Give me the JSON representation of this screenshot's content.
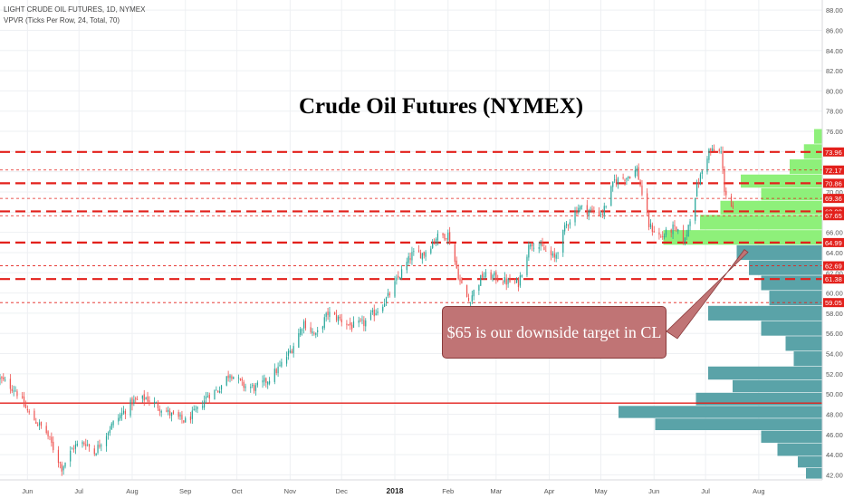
{
  "header": {
    "symbol_line": "LIGHT CRUDE OIL FUTURES, 1D, NYMEX",
    "indicator_line": "VPVR (Ticks Per Row, 24, Total, 70)"
  },
  "annotation": {
    "title": "Crude Oil Futures (NYMEX)",
    "callout": "$65 is our downside target in CL"
  },
  "chart_data": {
    "type": "candlestick",
    "interval": "1D",
    "y_axis": {
      "ticks": [
        "42.00",
        "44.00",
        "46.00",
        "48.00",
        "50.00",
        "52.00",
        "54.00",
        "56.00",
        "58.00",
        "60.00",
        "62.00",
        "64.00",
        "66.00",
        "68.00",
        "70.00",
        "72.00",
        "74.00",
        "76.00",
        "78.00",
        "80.00",
        "82.00",
        "84.00",
        "86.00",
        "88.00"
      ],
      "range": [
        41.5,
        89
      ]
    },
    "x_axis": {
      "labels": [
        {
          "text": "Jun",
          "date": "2017-06-01"
        },
        {
          "text": "Jul",
          "date": "2017-07-01"
        },
        {
          "text": "Aug",
          "date": "2017-08-01"
        },
        {
          "text": "Sep",
          "date": "2017-09-01"
        },
        {
          "text": "Oct",
          "date": "2017-10-01"
        },
        {
          "text": "Nov",
          "date": "2017-11-01"
        },
        {
          "text": "Dec",
          "date": "2017-12-01"
        },
        {
          "text": "2018",
          "date": "2018-01-01",
          "bold": true
        },
        {
          "text": "Feb",
          "date": "2018-02-01"
        },
        {
          "text": "Mar",
          "date": "2018-03-01"
        },
        {
          "text": "Apr",
          "date": "2018-04-01"
        },
        {
          "text": "May",
          "date": "2018-05-01"
        },
        {
          "text": "Jun",
          "date": "2018-06-01"
        },
        {
          "text": "Jul",
          "date": "2018-07-01"
        },
        {
          "text": "Aug",
          "date": "2018-08-01"
        }
      ],
      "range": [
        "2017-05-16",
        "2018-09-07"
      ]
    },
    "price_path": [
      {
        "date": "2017-05-16",
        "close": 51.5
      },
      {
        "date": "2017-05-25",
        "close": 50.4
      },
      {
        "date": "2017-06-02",
        "close": 48.0
      },
      {
        "date": "2017-06-12",
        "close": 46.2
      },
      {
        "date": "2017-06-21",
        "close": 42.7
      },
      {
        "date": "2017-06-28",
        "close": 44.8
      },
      {
        "date": "2017-07-05",
        "close": 45.2
      },
      {
        "date": "2017-07-10",
        "close": 44.2
      },
      {
        "date": "2017-07-20",
        "close": 46.9
      },
      {
        "date": "2017-08-01",
        "close": 49.2
      },
      {
        "date": "2017-08-09",
        "close": 49.6
      },
      {
        "date": "2017-08-18",
        "close": 48.6
      },
      {
        "date": "2017-08-25",
        "close": 47.8
      },
      {
        "date": "2017-09-01",
        "close": 47.3
      },
      {
        "date": "2017-09-08",
        "close": 48.4
      },
      {
        "date": "2017-09-14",
        "close": 49.9
      },
      {
        "date": "2017-09-20",
        "close": 50.4
      },
      {
        "date": "2017-09-27",
        "close": 52.1
      },
      {
        "date": "2017-10-05",
        "close": 50.8
      },
      {
        "date": "2017-10-12",
        "close": 50.6
      },
      {
        "date": "2017-10-19",
        "close": 51.4
      },
      {
        "date": "2017-10-26",
        "close": 52.7
      },
      {
        "date": "2017-11-02",
        "close": 54.5
      },
      {
        "date": "2017-11-09",
        "close": 57.1
      },
      {
        "date": "2017-11-16",
        "close": 55.7
      },
      {
        "date": "2017-11-23",
        "close": 58.0
      },
      {
        "date": "2017-11-30",
        "close": 57.4
      },
      {
        "date": "2017-12-07",
        "close": 56.7
      },
      {
        "date": "2017-12-14",
        "close": 57.0
      },
      {
        "date": "2017-12-21",
        "close": 58.2
      },
      {
        "date": "2017-12-28",
        "close": 59.6
      },
      {
        "date": "2018-01-04",
        "close": 61.8
      },
      {
        "date": "2018-01-11",
        "close": 63.8
      },
      {
        "date": "2018-01-18",
        "close": 63.9
      },
      {
        "date": "2018-01-25",
        "close": 65.5
      },
      {
        "date": "2018-02-01",
        "close": 65.8
      },
      {
        "date": "2018-02-08",
        "close": 61.1
      },
      {
        "date": "2018-02-13",
        "close": 59.2
      },
      {
        "date": "2018-02-21",
        "close": 61.7
      },
      {
        "date": "2018-02-28",
        "close": 61.6
      },
      {
        "date": "2018-03-07",
        "close": 61.1
      },
      {
        "date": "2018-03-14",
        "close": 61.0
      },
      {
        "date": "2018-03-21",
        "close": 65.1
      },
      {
        "date": "2018-03-28",
        "close": 64.4
      },
      {
        "date": "2018-04-04",
        "close": 63.4
      },
      {
        "date": "2018-04-11",
        "close": 66.8
      },
      {
        "date": "2018-04-18",
        "close": 68.5
      },
      {
        "date": "2018-04-25",
        "close": 68.1
      },
      {
        "date": "2018-05-02",
        "close": 67.9
      },
      {
        "date": "2018-05-09",
        "close": 71.1
      },
      {
        "date": "2018-05-16",
        "close": 71.5
      },
      {
        "date": "2018-05-22",
        "close": 72.2
      },
      {
        "date": "2018-05-29",
        "close": 66.7
      },
      {
        "date": "2018-06-05",
        "close": 65.5
      },
      {
        "date": "2018-06-12",
        "close": 66.4
      },
      {
        "date": "2018-06-19",
        "close": 65.2
      },
      {
        "date": "2018-06-26",
        "close": 70.5
      },
      {
        "date": "2018-07-03",
        "close": 74.1
      },
      {
        "date": "2018-07-10",
        "close": 73.9
      },
      {
        "date": "2018-07-12",
        "close": 70.3
      },
      {
        "date": "2018-07-17",
        "close": 68.1
      }
    ],
    "levels": [
      {
        "price": 73.96,
        "label": "73.96",
        "style": "major"
      },
      {
        "price": 72.17,
        "label": "72.17",
        "style": "minor"
      },
      {
        "price": 70.86,
        "label": "70.86",
        "style": "major"
      },
      {
        "price": 69.36,
        "label": "69.36",
        "style": "minor"
      },
      {
        "price": 68.08,
        "label": "68.08",
        "style": "major"
      },
      {
        "price": 67.65,
        "label": "67.65",
        "style": "minor"
      },
      {
        "price": 64.99,
        "label": "64.99",
        "style": "major"
      },
      {
        "price": 62.69,
        "label": "62.69",
        "style": "minor"
      },
      {
        "price": 61.38,
        "label": "61.38",
        "style": "major"
      },
      {
        "price": 59.05,
        "label": "59.05",
        "style": "minor"
      },
      {
        "price": 49.1,
        "label": "",
        "style": "solid"
      }
    ],
    "volume_profile": {
      "rows": [
        {
          "price": 75.5,
          "volume": 0.04,
          "zone": "value-area"
        },
        {
          "price": 74.0,
          "volume": 0.09,
          "zone": "value-area"
        },
        {
          "price": 72.5,
          "volume": 0.16,
          "zone": "value-area"
        },
        {
          "price": 71.0,
          "volume": 0.4,
          "zone": "value-area"
        },
        {
          "price": 69.8,
          "volume": 0.3,
          "zone": "value-area"
        },
        {
          "price": 68.5,
          "volume": 0.5,
          "zone": "value-area"
        },
        {
          "price": 67.0,
          "volume": 0.6,
          "zone": "value-area"
        },
        {
          "price": 65.5,
          "volume": 0.78,
          "zone": "value-area"
        },
        {
          "price": 64.0,
          "volume": 0.42,
          "zone": "outside"
        },
        {
          "price": 62.5,
          "volume": 0.36,
          "zone": "outside"
        },
        {
          "price": 61.0,
          "volume": 0.3,
          "zone": "outside"
        },
        {
          "price": 59.5,
          "volume": 0.26,
          "zone": "outside"
        },
        {
          "price": 58.0,
          "volume": 0.56,
          "zone": "outside"
        },
        {
          "price": 56.5,
          "volume": 0.3,
          "zone": "outside"
        },
        {
          "price": 55.0,
          "volume": 0.18,
          "zone": "outside"
        },
        {
          "price": 53.5,
          "volume": 0.14,
          "zone": "outside"
        },
        {
          "price": 52.0,
          "volume": 0.56,
          "zone": "outside"
        },
        {
          "price": 50.8,
          "volume": 0.44,
          "zone": "outside"
        },
        {
          "price": 49.5,
          "volume": 0.62,
          "zone": "outside"
        },
        {
          "price": 48.2,
          "volume": 1.0,
          "zone": "outside"
        },
        {
          "price": 47.0,
          "volume": 0.82,
          "zone": "outside"
        },
        {
          "price": 45.8,
          "volume": 0.3,
          "zone": "outside"
        },
        {
          "price": 44.5,
          "volume": 0.22,
          "zone": "outside"
        },
        {
          "price": 43.2,
          "volume": 0.12,
          "zone": "outside"
        },
        {
          "price": 42.2,
          "volume": 0.08,
          "zone": "outside"
        }
      ]
    },
    "callout_arrow_target_price": 64.3
  },
  "colors": {
    "bull": "#26a69a",
    "bear": "#ef5350",
    "level": "#e3201b",
    "label_bg": "#e3201b",
    "vp_value_area": "#8ef07a",
    "vp_outside": "#5aa3a8",
    "callout_fill": "#c07475",
    "grid": "#eef0f3",
    "axis_text": "#555555"
  }
}
